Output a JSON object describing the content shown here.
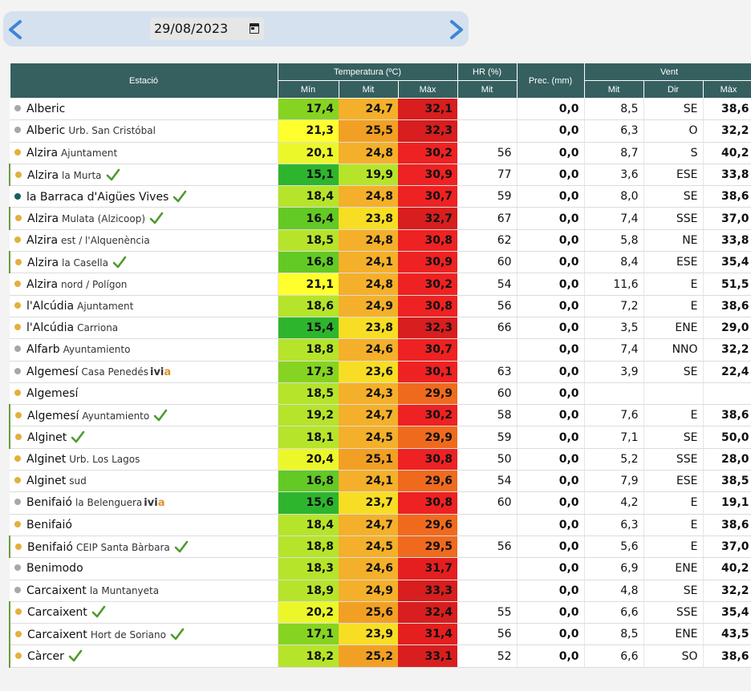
{
  "date": "29/08/2023",
  "headers": {
    "station": "Estació",
    "temperature": "Temperatura (ºC)",
    "humidity": "HR (%)",
    "precip": "Prec. (mm)",
    "wind": "Vent",
    "min": "Mín",
    "mean": "Mit",
    "max": "Màx",
    "hr_mean": "Mit",
    "wind_mean": "Mit",
    "wind_dir": "Dir",
    "wind_max": "Màx"
  },
  "ivia_label": "ivi",
  "ivia_label_a": "a",
  "colors": {
    "header": "#35605f",
    "dot_grey": "#a7a7a7",
    "dot_gold": "#e3b03d",
    "dot_teal": "#185e5e",
    "check": "#4e9a2c"
  },
  "rows": [
    {
      "name": "Alberic",
      "sub": "",
      "dot": "grey",
      "check": false,
      "ivia": false,
      "bar": false,
      "tmin": "17,4",
      "tmit": "24,7",
      "tmax": "32,1",
      "hr": "",
      "prec": "0,0",
      "wmit": "8,5",
      "wdir": "SE",
      "wmax": "38,6"
    },
    {
      "name": "Alberic",
      "sub": "Urb. San Cristóbal",
      "dot": "grey",
      "check": false,
      "ivia": false,
      "bar": false,
      "tmin": "21,3",
      "tmit": "25,5",
      "tmax": "32,3",
      "hr": "",
      "prec": "0,0",
      "wmit": "6,3",
      "wdir": "O",
      "wmax": "32,2"
    },
    {
      "name": "Alzira",
      "sub": "Ajuntament",
      "dot": "gold",
      "check": false,
      "ivia": false,
      "bar": false,
      "tmin": "20,1",
      "tmit": "24,8",
      "tmax": "30,2",
      "hr": "56",
      "prec": "0,0",
      "wmit": "8,7",
      "wdir": "S",
      "wmax": "40,2"
    },
    {
      "name": "Alzira",
      "sub": "la Murta",
      "dot": "gold",
      "check": true,
      "ivia": false,
      "bar": true,
      "tmin": "15,1",
      "tmit": "19,9",
      "tmax": "30,9",
      "hr": "77",
      "prec": "0,0",
      "wmit": "3,6",
      "wdir": "ESE",
      "wmax": "33,8"
    },
    {
      "name": "la Barraca d'Aigües Vives",
      "sub": "",
      "dot": "teal",
      "check": true,
      "ivia": false,
      "bar": false,
      "tmin": "18,4",
      "tmit": "24,8",
      "tmax": "30,7",
      "hr": "59",
      "prec": "0,0",
      "wmit": "8,0",
      "wdir": "SE",
      "wmax": "38,6"
    },
    {
      "name": "Alzira",
      "sub": "Mulata (Alzicoop)",
      "dot": "gold",
      "check": true,
      "ivia": false,
      "bar": true,
      "tmin": "16,4",
      "tmit": "23,8",
      "tmax": "32,7",
      "hr": "67",
      "prec": "0,0",
      "wmit": "7,4",
      "wdir": "SSE",
      "wmax": "37,0"
    },
    {
      "name": "Alzira",
      "sub": "est / l'Alquenència",
      "dot": "gold",
      "check": false,
      "ivia": false,
      "bar": false,
      "tmin": "18,5",
      "tmit": "24,8",
      "tmax": "30,8",
      "hr": "62",
      "prec": "0,0",
      "wmit": "5,8",
      "wdir": "NE",
      "wmax": "33,8"
    },
    {
      "name": "Alzira",
      "sub": "la Casella",
      "dot": "gold",
      "check": true,
      "ivia": false,
      "bar": true,
      "tmin": "16,8",
      "tmit": "24,1",
      "tmax": "30,9",
      "hr": "60",
      "prec": "0,0",
      "wmit": "8,4",
      "wdir": "ESE",
      "wmax": "35,4"
    },
    {
      "name": "Alzira",
      "sub": "nord / Polígon",
      "dot": "gold",
      "check": false,
      "ivia": false,
      "bar": false,
      "tmin": "21,1",
      "tmit": "24,8",
      "tmax": "30,2",
      "hr": "54",
      "prec": "0,0",
      "wmit": "11,6",
      "wdir": "E",
      "wmax": "51,5"
    },
    {
      "name": "l'Alcúdia",
      "sub": "Ajuntament",
      "dot": "gold",
      "check": false,
      "ivia": false,
      "bar": false,
      "tmin": "18,6",
      "tmit": "24,9",
      "tmax": "30,8",
      "hr": "56",
      "prec": "0,0",
      "wmit": "7,2",
      "wdir": "E",
      "wmax": "38,6"
    },
    {
      "name": "l'Alcúdia",
      "sub": "Carriona",
      "dot": "gold",
      "check": false,
      "ivia": false,
      "bar": false,
      "tmin": "15,4",
      "tmit": "23,8",
      "tmax": "32,3",
      "hr": "66",
      "prec": "0,0",
      "wmit": "3,5",
      "wdir": "ENE",
      "wmax": "29,0"
    },
    {
      "name": "Alfarb",
      "sub": "Ayuntamiento",
      "dot": "grey",
      "check": false,
      "ivia": false,
      "bar": false,
      "tmin": "18,8",
      "tmit": "24,6",
      "tmax": "30,7",
      "hr": "",
      "prec": "0,0",
      "wmit": "7,4",
      "wdir": "NNO",
      "wmax": "32,2"
    },
    {
      "name": "Algemesí",
      "sub": "Casa Penedés",
      "dot": "grey",
      "check": false,
      "ivia": true,
      "bar": false,
      "tmin": "17,3",
      "tmit": "23,6",
      "tmax": "30,1",
      "hr": "63",
      "prec": "0,0",
      "wmit": "3,9",
      "wdir": "SE",
      "wmax": "22,4"
    },
    {
      "name": "Algemesí",
      "sub": "",
      "dot": "gold",
      "check": false,
      "ivia": false,
      "bar": false,
      "tmin": "18,5",
      "tmit": "24,3",
      "tmax": "29,9",
      "hr": "60",
      "prec": "0,0",
      "wmit": "",
      "wdir": "",
      "wmax": ""
    },
    {
      "name": "Algemesí",
      "sub": "Ayuntamiento",
      "dot": "gold",
      "check": true,
      "ivia": false,
      "bar": true,
      "tmin": "19,2",
      "tmit": "24,7",
      "tmax": "30,2",
      "hr": "58",
      "prec": "0,0",
      "wmit": "7,6",
      "wdir": "E",
      "wmax": "38,6"
    },
    {
      "name": "Alginet",
      "sub": "",
      "dot": "gold",
      "check": true,
      "ivia": false,
      "bar": true,
      "tmin": "18,1",
      "tmit": "24,5",
      "tmax": "29,9",
      "hr": "59",
      "prec": "0,0",
      "wmit": "7,1",
      "wdir": "SE",
      "wmax": "50,0"
    },
    {
      "name": "Alginet",
      "sub": "Urb. Los Lagos",
      "dot": "gold",
      "check": false,
      "ivia": false,
      "bar": false,
      "tmin": "20,4",
      "tmit": "25,1",
      "tmax": "30,8",
      "hr": "50",
      "prec": "0,0",
      "wmit": "5,2",
      "wdir": "SSE",
      "wmax": "28,0"
    },
    {
      "name": "Alginet",
      "sub": "sud",
      "dot": "gold",
      "check": false,
      "ivia": false,
      "bar": false,
      "tmin": "16,8",
      "tmit": "24,1",
      "tmax": "29,6",
      "hr": "54",
      "prec": "0,0",
      "wmit": "7,9",
      "wdir": "ESE",
      "wmax": "38,5"
    },
    {
      "name": "Benifaió",
      "sub": "la Belenguera",
      "dot": "grey",
      "check": false,
      "ivia": true,
      "bar": false,
      "tmin": "15,6",
      "tmit": "23,7",
      "tmax": "30,8",
      "hr": "60",
      "prec": "0,0",
      "wmit": "4,2",
      "wdir": "E",
      "wmax": "19,1"
    },
    {
      "name": "Benifaió",
      "sub": "",
      "dot": "gold",
      "check": false,
      "ivia": false,
      "bar": false,
      "tmin": "18,4",
      "tmit": "24,7",
      "tmax": "29,6",
      "hr": "",
      "prec": "0,0",
      "wmit": "6,3",
      "wdir": "E",
      "wmax": "38,6"
    },
    {
      "name": "Benifaió",
      "sub": "CEIP Santa Bàrbara",
      "dot": "gold",
      "check": true,
      "ivia": false,
      "bar": true,
      "tmin": "18,8",
      "tmit": "24,5",
      "tmax": "29,5",
      "hr": "56",
      "prec": "0,0",
      "wmit": "5,6",
      "wdir": "E",
      "wmax": "37,0"
    },
    {
      "name": "Benimodo",
      "sub": "",
      "dot": "grey",
      "check": false,
      "ivia": false,
      "bar": false,
      "tmin": "18,3",
      "tmit": "24,6",
      "tmax": "31,7",
      "hr": "",
      "prec": "0,0",
      "wmit": "6,9",
      "wdir": "ENE",
      "wmax": "40,2"
    },
    {
      "name": "Carcaixent",
      "sub": "la Muntanyeta",
      "dot": "grey",
      "check": false,
      "ivia": false,
      "bar": false,
      "tmin": "18,9",
      "tmit": "24,9",
      "tmax": "33,3",
      "hr": "",
      "prec": "0,0",
      "wmit": "4,8",
      "wdir": "SE",
      "wmax": "32,2"
    },
    {
      "name": "Carcaixent",
      "sub": "",
      "dot": "gold",
      "check": true,
      "ivia": false,
      "bar": true,
      "tmin": "20,2",
      "tmit": "25,6",
      "tmax": "32,4",
      "hr": "55",
      "prec": "0,0",
      "wmit": "6,6",
      "wdir": "SSE",
      "wmax": "35,4"
    },
    {
      "name": "Carcaixent",
      "sub": "Hort de Soriano",
      "dot": "gold",
      "check": true,
      "ivia": false,
      "bar": true,
      "tmin": "17,1",
      "tmit": "23,9",
      "tmax": "31,4",
      "hr": "56",
      "prec": "0,0",
      "wmit": "8,5",
      "wdir": "ENE",
      "wmax": "43,5"
    },
    {
      "name": "Càrcer",
      "sub": "",
      "dot": "gold",
      "check": true,
      "ivia": false,
      "bar": true,
      "tmin": "18,2",
      "tmit": "25,2",
      "tmax": "33,1",
      "hr": "52",
      "prec": "0,0",
      "wmit": "6,6",
      "wdir": "SO",
      "wmax": "38,6"
    }
  ]
}
